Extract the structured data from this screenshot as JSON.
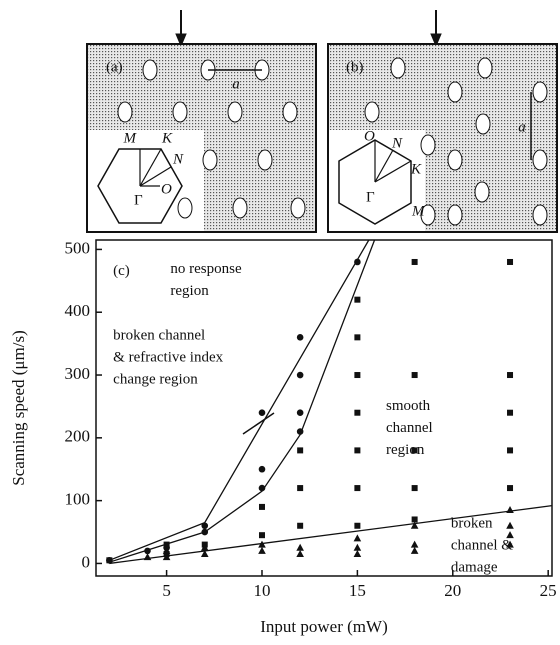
{
  "chart_data": {
    "type": "scatter",
    "xlabel": "Input power (mW)",
    "ylabel": "Scanning speed (μm/s)",
    "xlim": [
      1.3,
      25.2
    ],
    "ylim": [
      -20,
      515
    ],
    "xticks": [
      5,
      10,
      15,
      20,
      25
    ],
    "yticks": [
      0,
      100,
      200,
      300,
      400,
      500
    ],
    "color": "#111111",
    "series": [
      {
        "marker": "circle",
        "x": [
          2,
          4,
          5,
          7,
          7,
          10,
          10,
          10,
          12,
          12,
          12,
          12,
          15
        ],
        "values": [
          5,
          20,
          25,
          60,
          50,
          240,
          150,
          120,
          360,
          300,
          240,
          210,
          480
        ]
      },
      {
        "marker": "square",
        "x": [
          2,
          5,
          5,
          7,
          10,
          10,
          12,
          12,
          12,
          15,
          15,
          15,
          15,
          15,
          15,
          15,
          18,
          18,
          18,
          18,
          18,
          23,
          23,
          23,
          23,
          23
        ],
        "values": [
          5,
          15,
          30,
          30,
          45,
          90,
          60,
          120,
          180,
          60,
          120,
          180,
          240,
          300,
          360,
          420,
          480,
          300,
          180,
          120,
          70,
          480,
          300,
          240,
          180,
          120
        ]
      },
      {
        "marker": "triangle",
        "x": [
          4,
          5,
          5,
          7,
          7,
          10,
          10,
          12,
          12,
          15,
          15,
          15,
          18,
          18,
          18,
          23,
          23,
          23,
          23
        ],
        "values": [
          10,
          10,
          20,
          15,
          25,
          20,
          30,
          15,
          25,
          15,
          25,
          40,
          20,
          30,
          60,
          30,
          45,
          60,
          85
        ]
      }
    ],
    "boundaries": [
      {
        "x": [
          2,
          7,
          15.6
        ],
        "values": [
          5,
          65,
          515
        ]
      },
      {
        "x": [
          2,
          7,
          10,
          12,
          15.9
        ],
        "values": [
          2,
          50,
          115,
          205,
          515
        ]
      },
      {
        "x": [
          2,
          25.2
        ],
        "values": [
          0,
          92
        ]
      }
    ],
    "annotations": [
      {
        "lines": [
          "(c)"
        ],
        "x": 2.2,
        "y": 465
      },
      {
        "lines": [
          "no response",
          "region"
        ],
        "x": 5.2,
        "y": 468
      },
      {
        "lines": [
          "broken channel",
          "& refractive index",
          "change region"
        ],
        "x": 2.2,
        "y": 362
      },
      {
        "lines": [
          "smooth",
          "channel",
          "region"
        ],
        "x": 16.5,
        "y": 250
      },
      {
        "lines": [
          "broken",
          "channel &",
          "damage"
        ],
        "x": 19.9,
        "y": 63
      }
    ]
  },
  "panels": [
    {
      "label": "(a)",
      "lattice": "a",
      "points": [
        "M",
        "K",
        "N",
        "O",
        "Γ"
      ]
    },
    {
      "label": "(b)",
      "lattice": "a",
      "points": [
        "O",
        "N",
        "K",
        "Γ",
        "M"
      ]
    }
  ]
}
